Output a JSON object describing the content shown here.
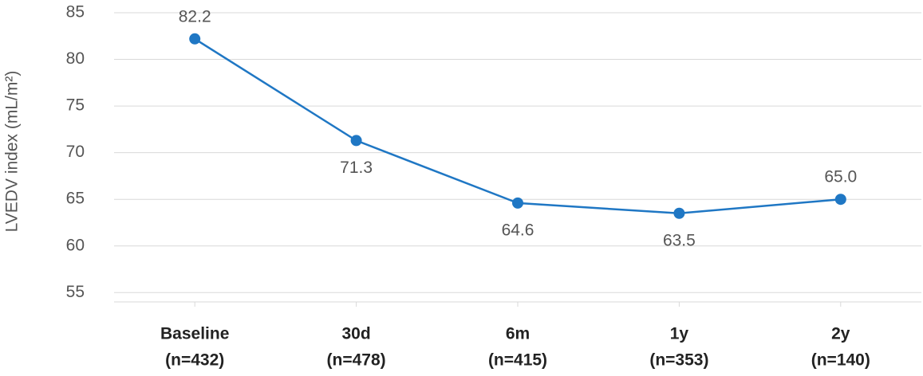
{
  "chart_data": {
    "type": "line",
    "y_label": "LVEDV index (mL/m²)",
    "categories": [
      [
        "Baseline",
        "(n=432)"
      ],
      [
        "30d",
        "(n=478)"
      ],
      [
        "6m",
        "(n=415)"
      ],
      [
        "1y",
        "(n=353)"
      ],
      [
        "2y",
        "(n=140)"
      ]
    ],
    "series": [
      {
        "name": "LVEDV index",
        "color": "#1f77c4",
        "values": [
          82.2,
          71.3,
          64.6,
          63.5,
          65.0
        ],
        "value_labels": [
          "82.2",
          "71.3",
          "64.6",
          "63.5",
          "65.0"
        ]
      }
    ],
    "ylim": [
      54,
      85
    ],
    "yticks": [
      55,
      60,
      65,
      70,
      75,
      80,
      85
    ],
    "grid": true
  }
}
